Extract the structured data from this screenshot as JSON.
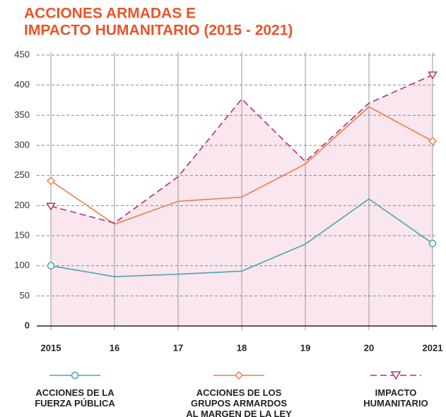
{
  "chart_data": {
    "type": "line",
    "title": [
      "ACCIONES ARMADAS E",
      "IMPACTO HUMANITARIO (2015 - 2021)"
    ],
    "categories": [
      "2015",
      "16",
      "17",
      "18",
      "19",
      "20",
      "2021"
    ],
    "ylim": [
      0,
      450
    ],
    "yticks": [
      0,
      50,
      100,
      150,
      200,
      250,
      300,
      350,
      400,
      450
    ],
    "grid": true,
    "series": [
      {
        "name": "ACCIONES DE LA\nFUERZA PÚBLICA",
        "color": "#4aa3b5",
        "marker": "circle",
        "values": [
          100,
          82,
          86,
          91,
          136,
          211,
          137
        ]
      },
      {
        "name": "ACCIONES DE LOS\nGRUPOS ARMARDOS\nAL MARGEN DE LA LEY",
        "color": "#ef7d45",
        "marker": "diamond",
        "values": [
          241,
          169,
          207,
          214,
          269,
          364,
          307
        ]
      },
      {
        "name": "IMPACTO\nHUMANITARIO",
        "color": "#b0307a",
        "marker": "triangle",
        "dashed": true,
        "area": "#f9e6ee",
        "values": [
          199,
          171,
          248,
          377,
          273,
          370,
          417
        ]
      }
    ]
  }
}
